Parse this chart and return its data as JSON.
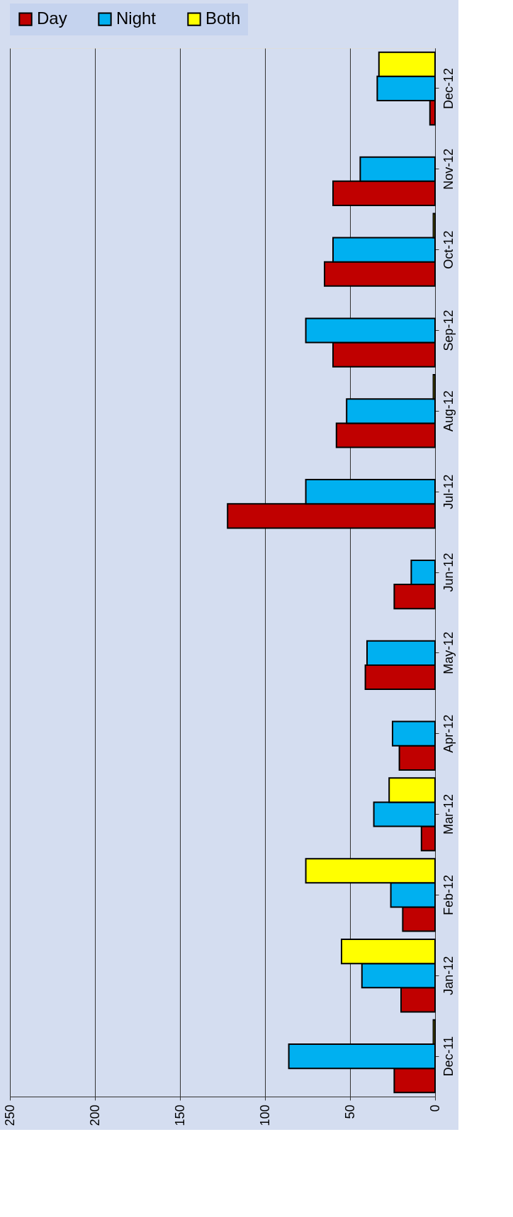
{
  "chart_data": {
    "type": "bar",
    "orientation": "horizontal",
    "categories": [
      "Dec-12",
      "Nov-12",
      "Oct-12",
      "Sep-12",
      "Aug-12",
      "Jul-12",
      "Jun-12",
      "May-12",
      "Apr-12",
      "Mar-12",
      "Feb-12",
      "Jan-12",
      "Dec-11"
    ],
    "series": [
      {
        "name": "Day",
        "color": "#c00000",
        "values": [
          3,
          60,
          65,
          60,
          58,
          122,
          24,
          41,
          21,
          8,
          19,
          20,
          24
        ]
      },
      {
        "name": "Night",
        "color": "#00b0f0",
        "values": [
          34,
          44,
          60,
          76,
          52,
          76,
          14,
          40,
          25,
          36,
          26,
          43,
          86
        ]
      },
      {
        "name": "Both",
        "color": "#ffff00",
        "values": [
          33,
          null,
          1,
          null,
          1,
          null,
          null,
          null,
          null,
          27,
          76,
          55,
          1
        ]
      }
    ],
    "xlim": [
      250,
      0
    ],
    "xticks": [
      250,
      200,
      150,
      100,
      50,
      0
    ],
    "grid": "x",
    "legend": "top"
  }
}
